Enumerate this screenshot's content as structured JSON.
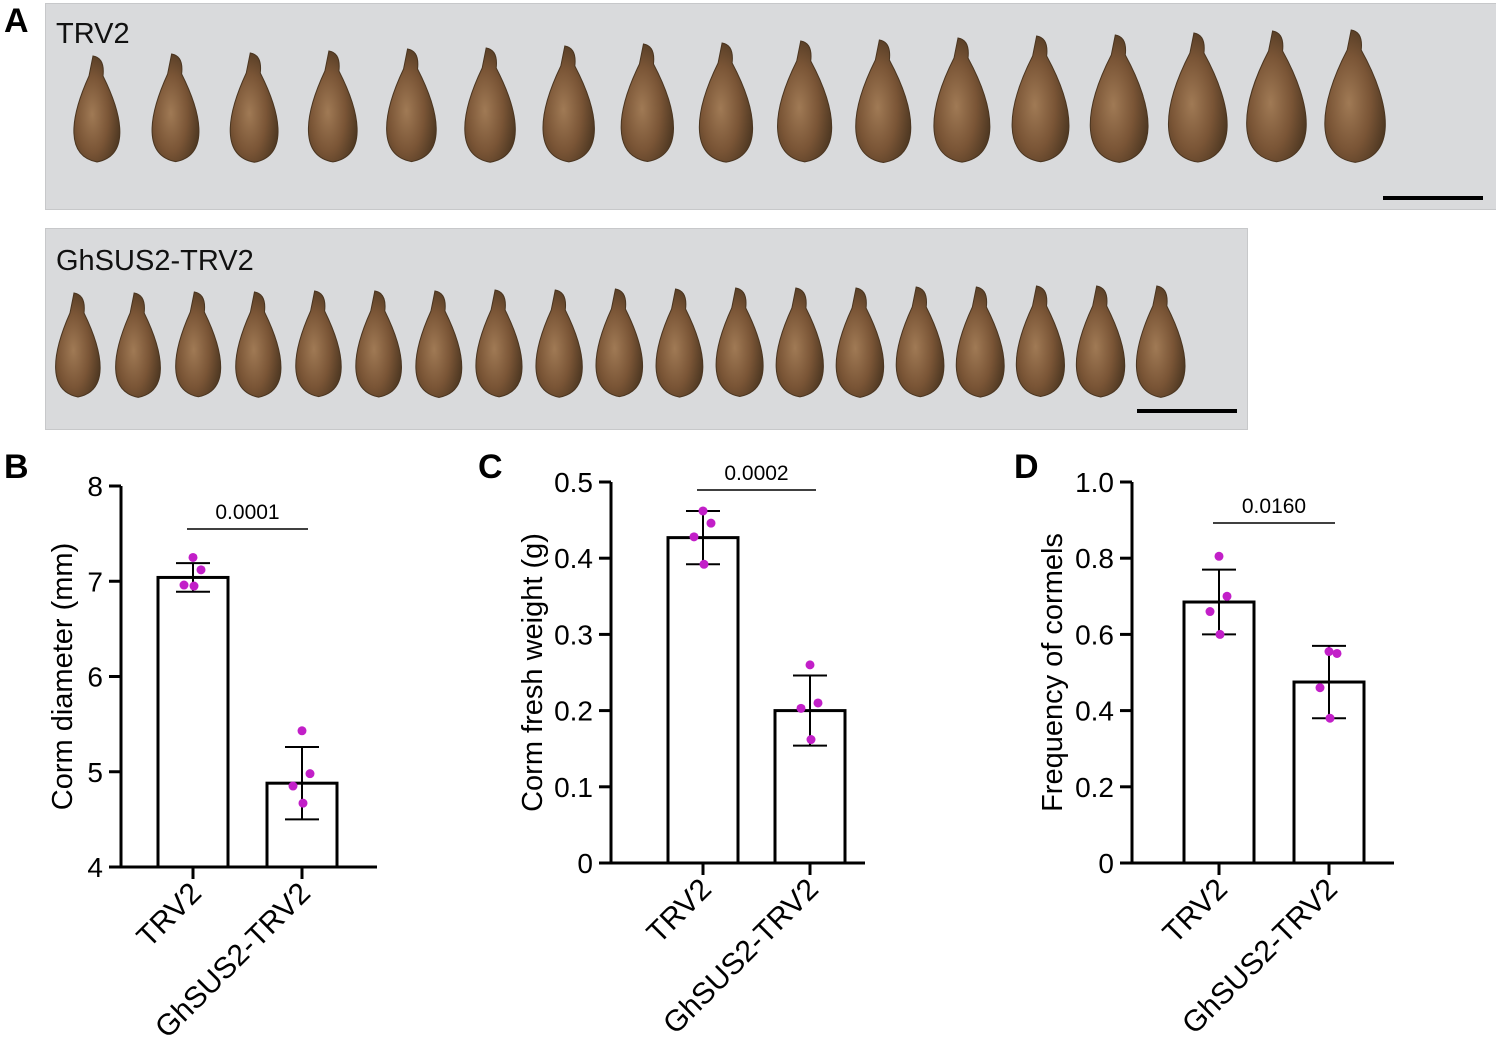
{
  "panels": {
    "a": {
      "letter": "A",
      "top_photo_label": "TRV2",
      "bottom_photo_label": "GhSUS2-TRV2"
    }
  },
  "colors": {
    "dots": "#c21fc8",
    "bar_fill": "#ffffff",
    "bar_stroke": "#000000",
    "photo_bg": "#d9dadc",
    "corm_dark": "#4a3520",
    "corm_mid": "#7a5536",
    "corm_light": "#a07a55"
  },
  "chart_data": [
    {
      "panel": "B",
      "type": "bar",
      "categories": [
        "TRV2",
        "GhSUS2-TRV2"
      ],
      "values": [
        7.04,
        4.88
      ],
      "errors": [
        0.15,
        0.38
      ],
      "points": [
        [
          7.25,
          7.12,
          6.96,
          6.95
        ],
        [
          5.43,
          4.98,
          4.85,
          4.67
        ]
      ],
      "ylabel": "Corm diameter (mm)",
      "ylim": [
        4,
        8
      ],
      "yticks": [
        4,
        5,
        6,
        7,
        8
      ],
      "ytick_labels": [
        "4",
        "5",
        "6",
        "7",
        "8"
      ],
      "significance": "0.0001"
    },
    {
      "panel": "C",
      "type": "bar",
      "categories": [
        "TRV2",
        "GhSUS2-TRV2"
      ],
      "values": [
        0.427,
        0.2
      ],
      "errors": [
        0.035,
        0.046
      ],
      "points": [
        [
          0.462,
          0.446,
          0.428,
          0.392
        ],
        [
          0.26,
          0.21,
          0.203,
          0.162
        ]
      ],
      "ylabel": "Corm fresh weight (g)",
      "ylim": [
        0,
        0.5
      ],
      "yticks": [
        0,
        0.1,
        0.2,
        0.3,
        0.4,
        0.5
      ],
      "ytick_labels": [
        "0",
        "0.1",
        "0.2",
        "0.3",
        "0.4",
        "0.5"
      ],
      "significance": "0.0002"
    },
    {
      "panel": "D",
      "type": "bar",
      "categories": [
        "TRV2",
        "GhSUS2-TRV2"
      ],
      "values": [
        0.685,
        0.475
      ],
      "errors": [
        0.085,
        0.095
      ],
      "points": [
        [
          0.805,
          0.7,
          0.66,
          0.6
        ],
        [
          0.555,
          0.55,
          0.46,
          0.38
        ]
      ],
      "ylabel": "Frequency of cormels",
      "ylim": [
        0,
        1.0
      ],
      "yticks": [
        0,
        0.2,
        0.4,
        0.6,
        0.8,
        1.0
      ],
      "ytick_labels": [
        "0",
        "0.2",
        "0.4",
        "0.6",
        "0.8",
        "1.0"
      ],
      "significance": "0.0160"
    }
  ]
}
